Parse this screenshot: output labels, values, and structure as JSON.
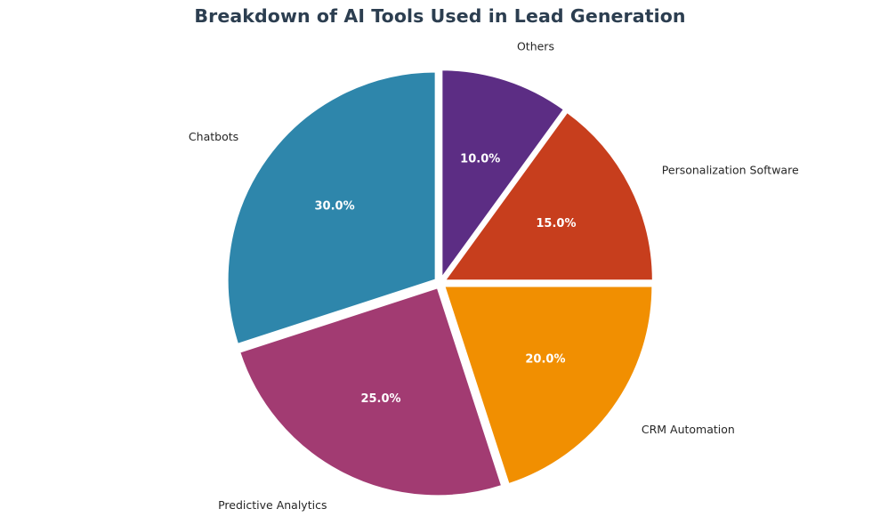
{
  "chart_data": {
    "type": "pie",
    "title": "Breakdown of AI Tools Used in Lead Generation",
    "categories": [
      "Chatbots",
      "Predictive Analytics",
      "CRM Automation",
      "Personalization Software",
      "Others"
    ],
    "values": [
      30.0,
      25.0,
      20.0,
      15.0,
      10.0
    ],
    "value_labels": [
      "30.0%",
      "25.0%",
      "20.0%",
      "15.0%",
      "10.0%"
    ],
    "colors": [
      "#2e86ab",
      "#a23b72",
      "#f18f01",
      "#c73e1d",
      "#5c2d84"
    ],
    "start_angle_deg": 90,
    "direction": "counterclockwise",
    "exploded": true,
    "legend": "none"
  }
}
